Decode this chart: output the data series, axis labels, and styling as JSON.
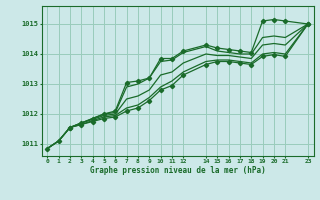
{
  "title": "Graphe pression niveau de la mer (hPa)",
  "bg_color": "#cce8e8",
  "grid_color": "#99ccbb",
  "line_color": "#1a6b2a",
  "xlim": [
    -0.5,
    23.5
  ],
  "ylim": [
    1010.6,
    1015.6
  ],
  "yticks": [
    1011,
    1012,
    1013,
    1014,
    1015
  ],
  "xticks": [
    0,
    1,
    2,
    3,
    4,
    5,
    6,
    7,
    8,
    9,
    10,
    11,
    12,
    14,
    15,
    16,
    17,
    18,
    19,
    20,
    21,
    23
  ],
  "lines": [
    {
      "x": [
        0,
        1,
        2,
        3,
        4,
        5,
        6,
        7,
        8,
        9,
        10,
        11,
        12,
        14,
        15,
        16,
        17,
        18,
        19,
        20,
        21,
        23
      ],
      "y": [
        1010.85,
        1011.1,
        1011.55,
        1011.7,
        1011.85,
        1012.0,
        1012.1,
        1013.05,
        1013.1,
        1013.2,
        1013.85,
        1013.85,
        1014.1,
        1014.3,
        1014.2,
        1014.15,
        1014.1,
        1014.05,
        1015.1,
        1015.15,
        1015.1,
        1015.0
      ],
      "marker": true
    },
    {
      "x": [
        0,
        1,
        2,
        3,
        4,
        5,
        6,
        7,
        8,
        9,
        10,
        11,
        12,
        14,
        15,
        16,
        17,
        18,
        19,
        20,
        21,
        23
      ],
      "y": [
        1010.85,
        1011.1,
        1011.55,
        1011.7,
        1011.85,
        1012.0,
        1012.05,
        1012.9,
        1013.0,
        1013.2,
        1013.75,
        1013.8,
        1014.05,
        1014.25,
        1014.1,
        1014.05,
        1014.0,
        1014.0,
        1014.55,
        1014.6,
        1014.55,
        1015.0
      ],
      "marker": false
    },
    {
      "x": [
        0,
        1,
        2,
        3,
        4,
        5,
        6,
        7,
        8,
        9,
        10,
        11,
        12,
        14,
        15,
        16,
        17,
        18,
        19,
        20,
        21,
        23
      ],
      "y": [
        1010.85,
        1011.1,
        1011.55,
        1011.7,
        1011.82,
        1011.95,
        1012.0,
        1012.5,
        1012.6,
        1012.8,
        1013.3,
        1013.4,
        1013.7,
        1014.0,
        1013.95,
        1013.95,
        1013.9,
        1013.85,
        1014.3,
        1014.35,
        1014.3,
        1015.0
      ],
      "marker": false
    },
    {
      "x": [
        0,
        1,
        2,
        3,
        4,
        5,
        6,
        7,
        8,
        9,
        10,
        11,
        12,
        14,
        15,
        16,
        17,
        18,
        19,
        20,
        21,
        23
      ],
      "y": [
        1010.85,
        1011.1,
        1011.55,
        1011.65,
        1011.78,
        1011.9,
        1011.95,
        1012.2,
        1012.3,
        1012.55,
        1012.9,
        1013.1,
        1013.4,
        1013.75,
        1013.8,
        1013.8,
        1013.75,
        1013.7,
        1014.0,
        1014.05,
        1014.0,
        1015.0
      ],
      "marker": false
    },
    {
      "x": [
        2,
        3,
        4,
        5,
        6,
        7,
        8,
        9,
        10,
        11,
        12,
        14,
        15,
        16,
        17,
        18,
        19,
        20,
        21,
        23
      ],
      "y": [
        1011.55,
        1011.65,
        1011.75,
        1011.85,
        1011.9,
        1012.1,
        1012.2,
        1012.45,
        1012.8,
        1012.95,
        1013.3,
        1013.65,
        1013.75,
        1013.75,
        1013.7,
        1013.65,
        1013.92,
        1013.98,
        1013.92,
        1015.0
      ],
      "marker": true
    }
  ]
}
